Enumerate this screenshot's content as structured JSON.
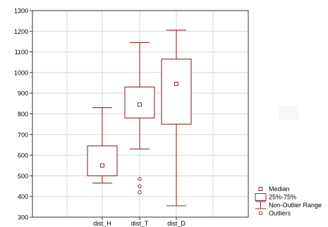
{
  "chart_data": {
    "type": "box",
    "categories": [
      "dist_H",
      "dist_T",
      "dist_D"
    ],
    "tick_labels_x": [
      "dist_H",
      "dist_T",
      "dist_D"
    ],
    "y_ticks": [
      300,
      400,
      500,
      600,
      700,
      800,
      900,
      1000,
      1100,
      1200,
      1300
    ],
    "ylim": [
      300,
      1300
    ],
    "grid": true,
    "legend": "bottom-right",
    "legend_entries": [
      {
        "label": "Median",
        "marker": "square"
      },
      {
        "label": "25%-75%",
        "marker": "box"
      },
      {
        "label": "Non-Outlier Range",
        "marker": "whisker"
      },
      {
        "label": "Outliers",
        "marker": "circle"
      }
    ],
    "series": [
      {
        "category": "dist_H",
        "median": 550,
        "q1": 500,
        "q3": 645,
        "whisker_low": 465,
        "whisker_high": 830,
        "outliers": []
      },
      {
        "category": "dist_T",
        "median": 845,
        "q1": 780,
        "q3": 930,
        "whisker_low": 630,
        "whisker_high": 1145,
        "outliers": [
          485,
          450,
          420
        ]
      },
      {
        "category": "dist_D",
        "median": 945,
        "q1": 750,
        "q3": 1065,
        "whisker_low": 355,
        "whisker_high": 1205,
        "outliers": []
      }
    ],
    "colors": {
      "box": "#8b2d2d",
      "axis": "#333333",
      "grid": "#d8d8d8",
      "text": "#000000",
      "background": "#ffffff"
    }
  }
}
